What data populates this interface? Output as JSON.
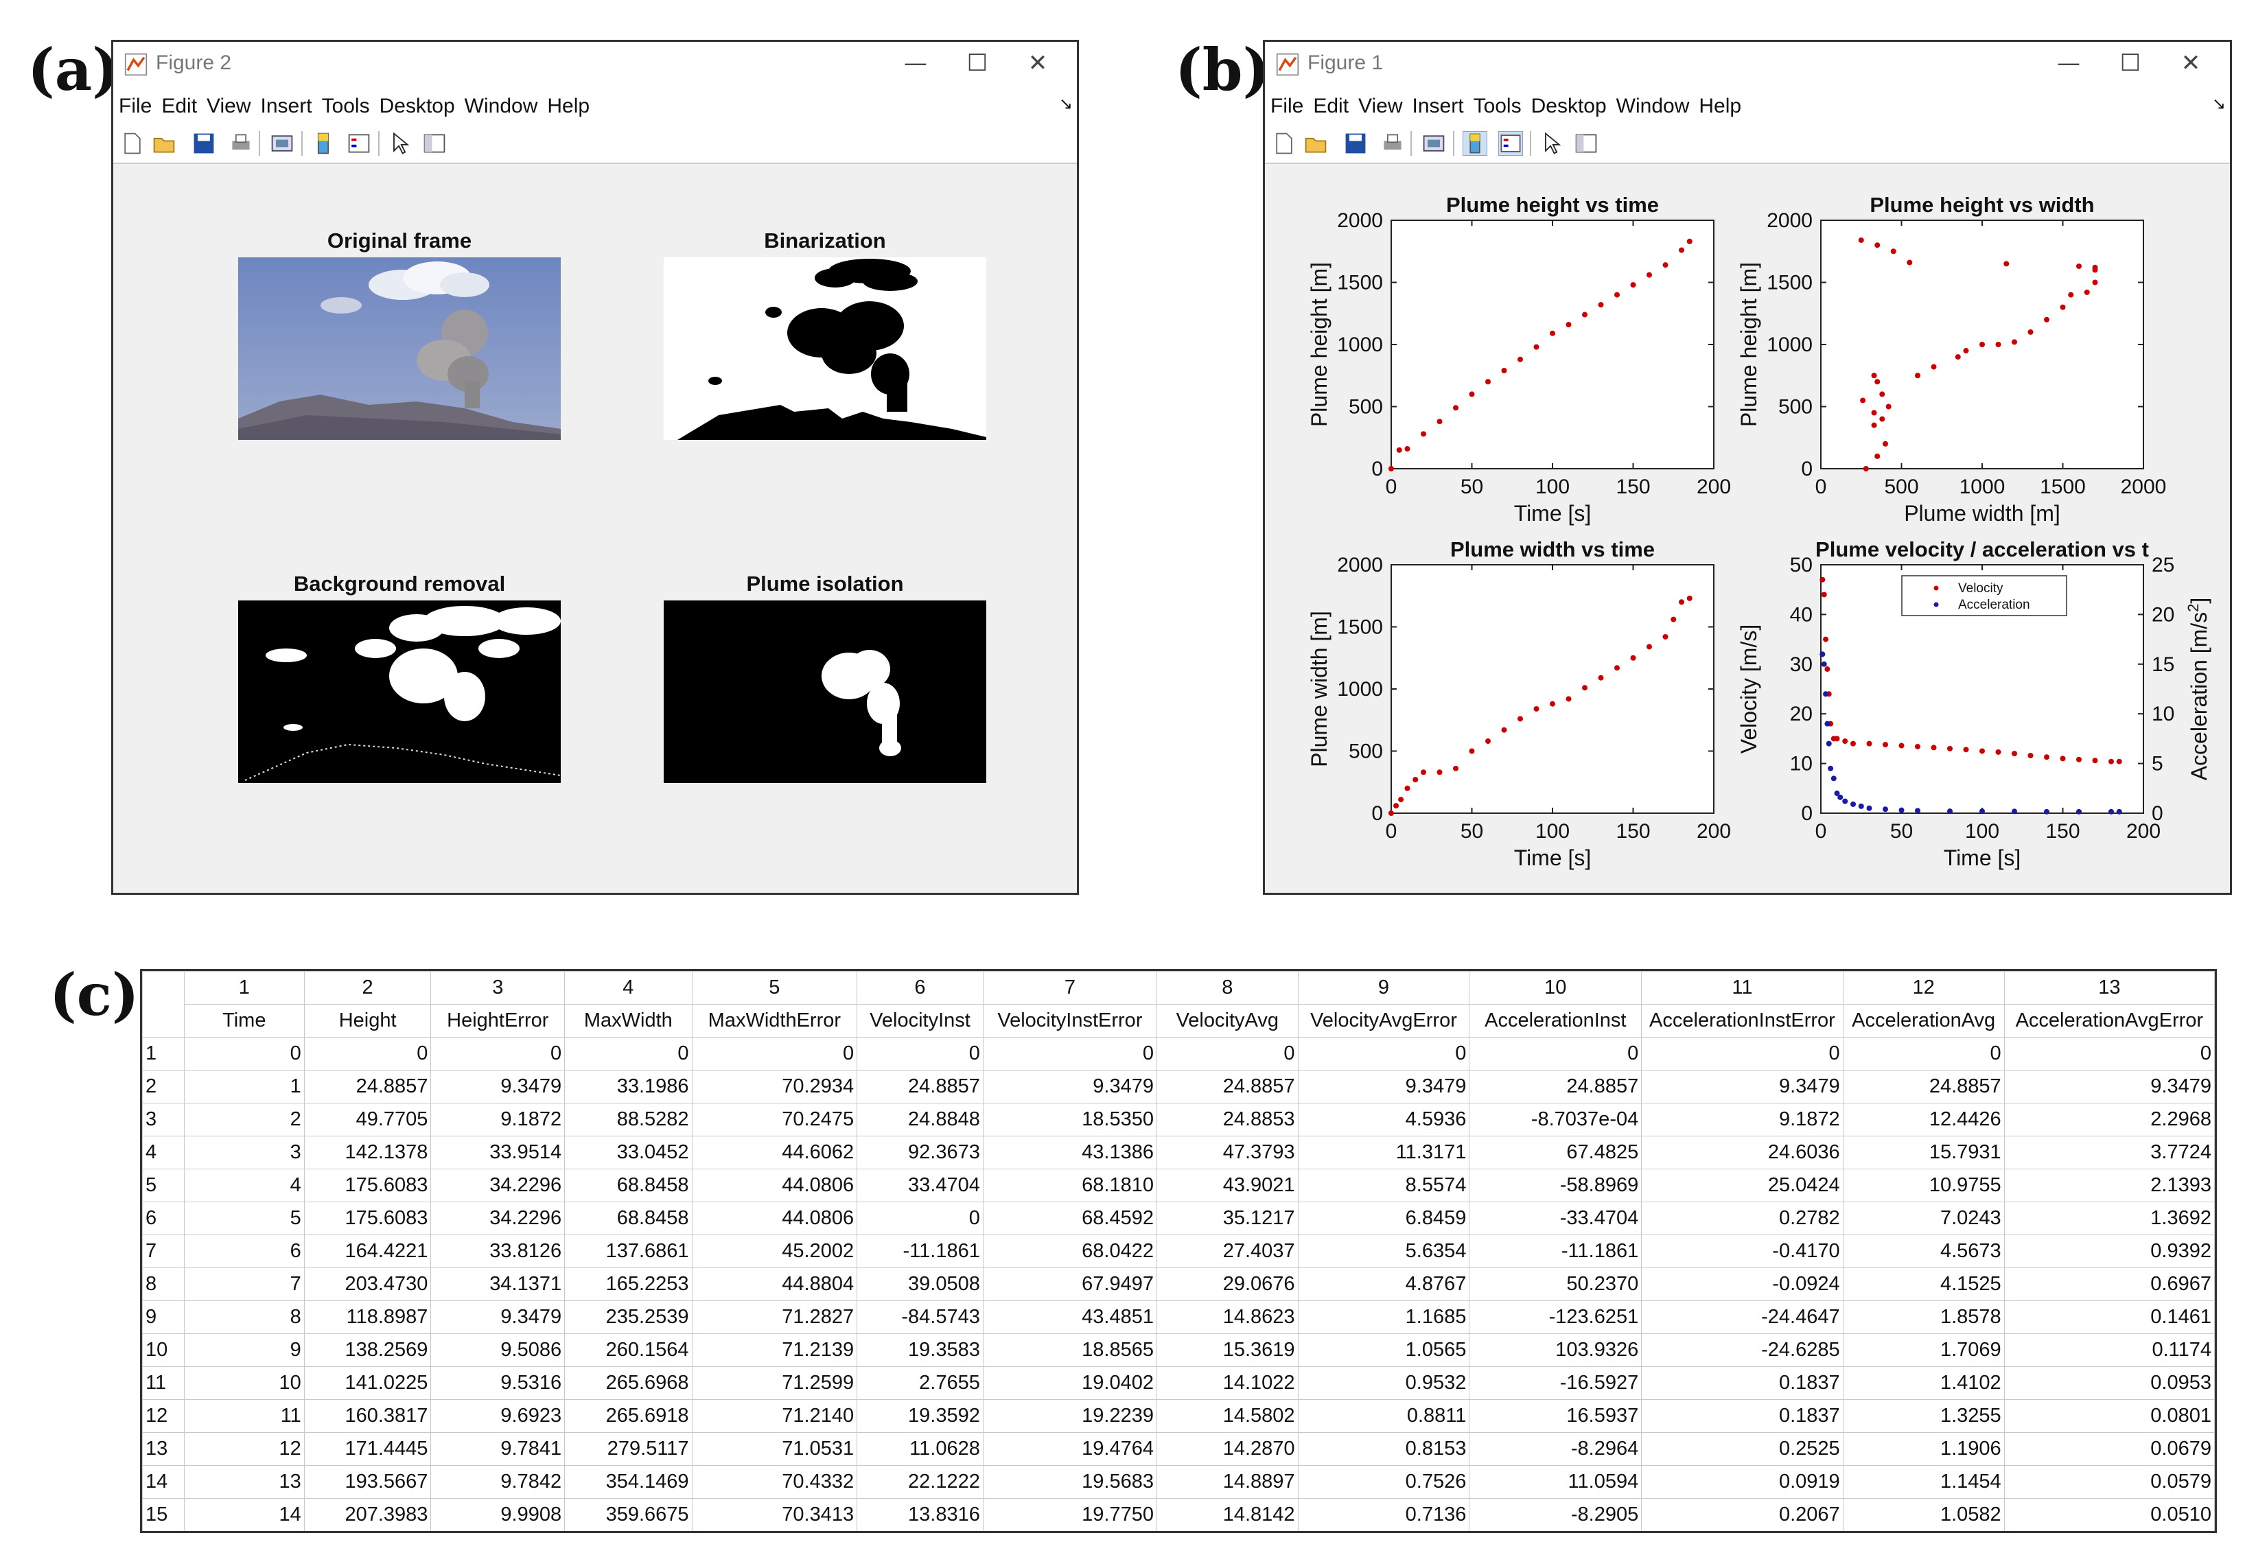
{
  "panel_labels": {
    "a": "(a)",
    "b": "(b)",
    "c": "(c)"
  },
  "figure2": {
    "title": "Figure 2",
    "menu": [
      "File",
      "Edit",
      "View",
      "Insert",
      "Tools",
      "Desktop",
      "Window",
      "Help"
    ],
    "image_titles": {
      "original": "Original frame",
      "binarization": "Binarization",
      "background": "Background removal",
      "isolation": "Plume isolation"
    }
  },
  "figure1": {
    "title": "Figure 1",
    "menu": [
      "File",
      "Edit",
      "View",
      "Insert",
      "Tools",
      "Desktop",
      "Window",
      "Help"
    ]
  },
  "window_controls": {
    "minimize": "—",
    "maximize": "☐",
    "close": "✕"
  },
  "chart_data": [
    {
      "type": "scatter",
      "title": "Plume height vs time",
      "xlabel": "Time [s]",
      "ylabel": "Plume height [m]",
      "xlim": [
        0,
        200
      ],
      "ylim": [
        0,
        2000
      ],
      "xticks": [
        0,
        50,
        100,
        150,
        200
      ],
      "yticks": [
        0,
        500,
        1000,
        1500,
        2000
      ],
      "color": "#cc0000",
      "x": [
        0,
        5,
        10,
        20,
        30,
        40,
        50,
        60,
        70,
        80,
        90,
        100,
        110,
        120,
        130,
        140,
        150,
        160,
        170,
        180,
        185
      ],
      "y": [
        0,
        150,
        160,
        280,
        380,
        490,
        600,
        700,
        790,
        880,
        980,
        1090,
        1160,
        1240,
        1320,
        1400,
        1480,
        1560,
        1640,
        1760,
        1830
      ]
    },
    {
      "type": "scatter",
      "title": "Plume height vs width",
      "xlabel": "Plume width [m]",
      "ylabel": "Plume height [m]",
      "xlim": [
        0,
        2000
      ],
      "ylim": [
        0,
        2000
      ],
      "xticks": [
        0,
        500,
        1000,
        1500,
        2000
      ],
      "yticks": [
        0,
        500,
        1000,
        1500,
        2000
      ],
      "color": "#cc0000",
      "x": [
        280,
        350,
        400,
        330,
        260,
        380,
        350,
        330,
        420,
        330,
        380,
        600,
        700,
        850,
        900,
        1000,
        1100,
        1200,
        1300,
        1400,
        1500,
        1550,
        1650,
        1700,
        1700,
        1600,
        1700,
        1150,
        550,
        450,
        350,
        250
      ],
      "y": [
        0,
        100,
        200,
        350,
        550,
        600,
        700,
        750,
        500,
        450,
        400,
        750,
        820,
        900,
        950,
        1000,
        1000,
        1020,
        1100,
        1200,
        1300,
        1400,
        1420,
        1500,
        1600,
        1630,
        1620,
        1650,
        1660,
        1750,
        1800,
        1840
      ]
    },
    {
      "type": "scatter",
      "title": "Plume width vs time",
      "xlabel": "Time [s]",
      "ylabel": "Plume width [m]",
      "xlim": [
        0,
        200
      ],
      "ylim": [
        0,
        2000
      ],
      "xticks": [
        0,
        50,
        100,
        150,
        200
      ],
      "yticks": [
        0,
        500,
        1000,
        1500,
        2000
      ],
      "color": "#cc0000",
      "x": [
        0,
        3,
        6,
        10,
        15,
        20,
        30,
        40,
        50,
        60,
        70,
        80,
        90,
        100,
        110,
        120,
        130,
        140,
        150,
        160,
        170,
        175,
        180,
        185
      ],
      "y": [
        0,
        60,
        110,
        200,
        270,
        330,
        330,
        360,
        500,
        580,
        670,
        760,
        840,
        880,
        920,
        1010,
        1090,
        1170,
        1250,
        1340,
        1420,
        1560,
        1700,
        1730
      ]
    },
    {
      "type": "scatter",
      "title": "Plume velocity / acceleration vs t",
      "xlabel": "Time [s]",
      "ylabel": "Velocity [m/s]",
      "ylabel_right_base": "Acceleration [m/s",
      "ylabel_right_sup": "2",
      "ylabel_right_end": "]",
      "xlim": [
        0,
        200
      ],
      "ylim": [
        0,
        50
      ],
      "ylim_right": [
        0,
        25
      ],
      "xticks": [
        0,
        50,
        100,
        150,
        200
      ],
      "yticks": [
        0,
        10,
        20,
        30,
        40,
        50
      ],
      "yticks_right": [
        0,
        5,
        10,
        15,
        20,
        25
      ],
      "legend": "top-center",
      "series": [
        {
          "name": "Velocity",
          "color": "#cc0000",
          "x": [
            1,
            2,
            3,
            4,
            5,
            6,
            8,
            10,
            15,
            20,
            30,
            40,
            50,
            60,
            70,
            80,
            90,
            100,
            110,
            120,
            130,
            140,
            150,
            160,
            170,
            180,
            185
          ],
          "y": [
            47,
            44,
            35,
            29,
            24,
            18,
            15,
            15,
            14.5,
            14,
            14,
            13.8,
            13.6,
            13.4,
            13.2,
            13,
            12.8,
            12.5,
            12.3,
            12,
            11.6,
            11.3,
            11,
            10.8,
            10.6,
            10.4,
            10.4
          ]
        },
        {
          "name": "Acceleration",
          "color": "#1a1aa6",
          "x": [
            1,
            2,
            3,
            4,
            5,
            6,
            8,
            10,
            12,
            15,
            20,
            25,
            30,
            40,
            50,
            60,
            80,
            100,
            120,
            140,
            160,
            180,
            185
          ],
          "y": [
            16,
            15,
            12,
            9,
            7,
            4.5,
            3.5,
            2,
            1.6,
            1.2,
            0.9,
            0.7,
            0.5,
            0.4,
            0.3,
            0.25,
            0.2,
            0.2,
            0.18,
            0.15,
            0.15,
            0.15,
            0.15
          ]
        }
      ]
    }
  ],
  "table": {
    "col_numbers": [
      "1",
      "2",
      "3",
      "4",
      "5",
      "6",
      "7",
      "8",
      "9",
      "10",
      "11",
      "12",
      "13"
    ],
    "columns": [
      "Time",
      "Height",
      "HeightError",
      "MaxWidth",
      "MaxWidthError",
      "VelocityInst",
      "VelocityInstError",
      "VelocityAvg",
      "VelocityAvgError",
      "AccelerationInst",
      "AccelerationInstError",
      "AccelerationAvg",
      "AccelerationAvgError"
    ],
    "rows": [
      [
        "1",
        "0",
        "0",
        "0",
        "0",
        "0",
        "0",
        "0",
        "0",
        "0",
        "0",
        "0",
        "0",
        "0"
      ],
      [
        "2",
        "1",
        "24.8857",
        "9.3479",
        "33.1986",
        "70.2934",
        "24.8857",
        "9.3479",
        "24.8857",
        "9.3479",
        "24.8857",
        "9.3479",
        "24.8857",
        "9.3479"
      ],
      [
        "3",
        "2",
        "49.7705",
        "9.1872",
        "88.5282",
        "70.2475",
        "24.8848",
        "18.5350",
        "24.8853",
        "4.5936",
        "-8.7037e-04",
        "9.1872",
        "12.4426",
        "2.2968"
      ],
      [
        "4",
        "3",
        "142.1378",
        "33.9514",
        "33.0452",
        "44.6062",
        "92.3673",
        "43.1386",
        "47.3793",
        "11.3171",
        "67.4825",
        "24.6036",
        "15.7931",
        "3.7724"
      ],
      [
        "5",
        "4",
        "175.6083",
        "34.2296",
        "68.8458",
        "44.0806",
        "33.4704",
        "68.1810",
        "43.9021",
        "8.5574",
        "-58.8969",
        "25.0424",
        "10.9755",
        "2.1393"
      ],
      [
        "6",
        "5",
        "175.6083",
        "34.2296",
        "68.8458",
        "44.0806",
        "0",
        "68.4592",
        "35.1217",
        "6.8459",
        "-33.4704",
        "0.2782",
        "7.0243",
        "1.3692"
      ],
      [
        "7",
        "6",
        "164.4221",
        "33.8126",
        "137.6861",
        "45.2002",
        "-11.1861",
        "68.0422",
        "27.4037",
        "5.6354",
        "-11.1861",
        "-0.4170",
        "4.5673",
        "0.9392"
      ],
      [
        "8",
        "7",
        "203.4730",
        "34.1371",
        "165.2253",
        "44.8804",
        "39.0508",
        "67.9497",
        "29.0676",
        "4.8767",
        "50.2370",
        "-0.0924",
        "4.1525",
        "0.6967"
      ],
      [
        "9",
        "8",
        "118.8987",
        "9.3479",
        "235.2539",
        "71.2827",
        "-84.5743",
        "43.4851",
        "14.8623",
        "1.1685",
        "-123.6251",
        "-24.4647",
        "1.8578",
        "0.1461"
      ],
      [
        "10",
        "9",
        "138.2569",
        "9.5086",
        "260.1564",
        "71.2139",
        "19.3583",
        "18.8565",
        "15.3619",
        "1.0565",
        "103.9326",
        "-24.6285",
        "1.7069",
        "0.1174"
      ],
      [
        "11",
        "10",
        "141.0225",
        "9.5316",
        "265.6968",
        "71.2599",
        "2.7655",
        "19.0402",
        "14.1022",
        "0.9532",
        "-16.5927",
        "0.1837",
        "1.4102",
        "0.0953"
      ],
      [
        "12",
        "11",
        "160.3817",
        "9.6923",
        "265.6918",
        "71.2140",
        "19.3592",
        "19.2239",
        "14.5802",
        "0.8811",
        "16.5937",
        "0.1837",
        "1.3255",
        "0.0801"
      ],
      [
        "13",
        "12",
        "171.4445",
        "9.7841",
        "279.5117",
        "71.0531",
        "11.0628",
        "19.4764",
        "14.2870",
        "0.8153",
        "-8.2964",
        "0.2525",
        "1.1906",
        "0.0679"
      ],
      [
        "14",
        "13",
        "193.5667",
        "9.7842",
        "354.1469",
        "70.4332",
        "22.1222",
        "19.5683",
        "14.8897",
        "0.7526",
        "11.0594",
        "0.0919",
        "1.1454",
        "0.0579"
      ],
      [
        "15",
        "14",
        "207.3983",
        "9.9908",
        "359.6675",
        "70.3413",
        "13.8316",
        "19.7750",
        "14.8142",
        "0.7136",
        "-8.2905",
        "0.2067",
        "1.0582",
        "0.0510"
      ]
    ]
  }
}
